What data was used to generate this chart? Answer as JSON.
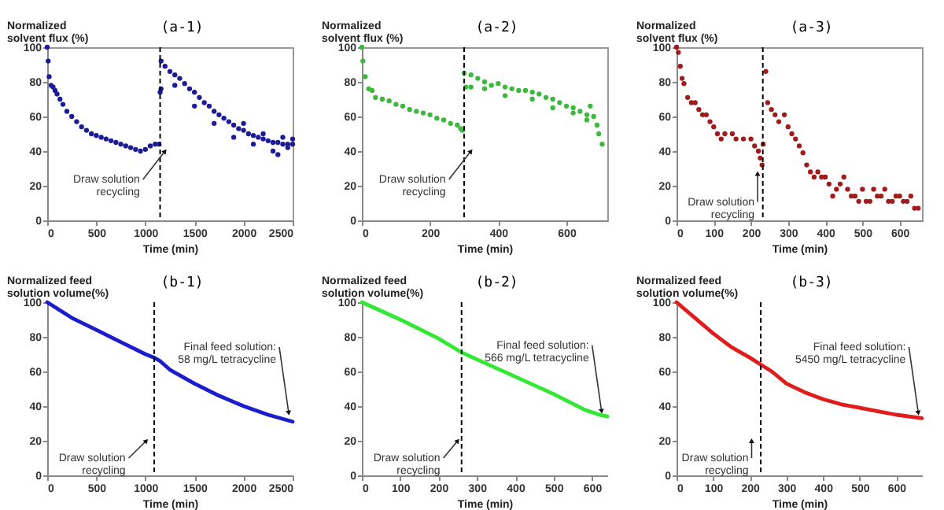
{
  "chart_data": [
    {
      "type": "scatter",
      "title": "(a-1)",
      "ylabel": "Normalized solvent flux (%)",
      "xlabel": "Time (min)",
      "color": "#1c1c96",
      "marker": "circle",
      "xlim": [
        0,
        2500
      ],
      "ylim": [
        0,
        100
      ],
      "xticks": [
        0,
        500,
        1000,
        1500,
        2000,
        2500
      ],
      "yticks": [
        0,
        20,
        40,
        60,
        80,
        100
      ],
      "x": [
        0,
        10,
        20,
        40,
        60,
        80,
        100,
        130,
        160,
        200,
        250,
        300,
        350,
        400,
        450,
        500,
        550,
        600,
        650,
        700,
        750,
        800,
        850,
        900,
        950,
        1000,
        1050,
        1100,
        1140,
        1150,
        1160,
        1160,
        1200,
        1250,
        1300,
        1300,
        1350,
        1400,
        1450,
        1500,
        1500,
        1550,
        1600,
        1650,
        1700,
        1700,
        1750,
        1800,
        1850,
        1900,
        1900,
        1950,
        2000,
        2000,
        2050,
        2100,
        2100,
        2150,
        2200,
        2200,
        2250,
        2300,
        2300,
        2350,
        2350,
        2400,
        2400,
        2450,
        2450,
        2500,
        2500
      ],
      "values": [
        100,
        92,
        83,
        78,
        77,
        75,
        73,
        70,
        67,
        63,
        60,
        57,
        54,
        52,
        50,
        49,
        48,
        47,
        46,
        45,
        44,
        43,
        42,
        41,
        40,
        41,
        43,
        44,
        44,
        74,
        76,
        92,
        89,
        86,
        84,
        78,
        82,
        79,
        76,
        74,
        66,
        71,
        68,
        66,
        63,
        56,
        61,
        59,
        57,
        55,
        48,
        53,
        52,
        56,
        50,
        49,
        44,
        48,
        47,
        50,
        46,
        45,
        40,
        45,
        38,
        44,
        48,
        44,
        42,
        44,
        47
      ],
      "ref_lines": [
        {
          "axis": "x",
          "value": 1150,
          "color": "#000000",
          "line_style": "dashed"
        }
      ],
      "annotations": [
        {
          "text": "Draw solution recycling",
          "x": 1200,
          "y": 40
        }
      ]
    },
    {
      "type": "scatter",
      "title": "(a-2)",
      "ylabel": "Normalized solvent flux (%)",
      "xlabel": "Time (min)",
      "color": "#3cb83c",
      "marker": "circle",
      "xlim": [
        0,
        720
      ],
      "ylim": [
        0,
        100
      ],
      "xticks": [
        0,
        200,
        400,
        600
      ],
      "yticks": [
        0,
        20,
        40,
        60,
        80,
        100
      ],
      "x": [
        0,
        3,
        10,
        20,
        30,
        40,
        60,
        80,
        100,
        120,
        140,
        160,
        180,
        200,
        220,
        240,
        260,
        280,
        290,
        295,
        300,
        305,
        320,
        320,
        340,
        360,
        360,
        380,
        400,
        420,
        420,
        440,
        460,
        480,
        500,
        500,
        520,
        540,
        560,
        560,
        580,
        600,
        620,
        620,
        640,
        660,
        660,
        670,
        680,
        690,
        695,
        705
      ],
      "values": [
        100,
        92,
        83,
        76,
        75,
        71,
        70,
        69,
        67,
        66,
        64,
        63,
        62,
        61,
        59,
        58,
        56,
        55,
        53,
        52,
        85,
        77,
        84,
        77,
        82,
        80,
        76,
        78,
        79,
        77,
        72,
        76,
        75,
        75,
        74,
        70,
        73,
        71,
        70,
        65,
        68,
        66,
        65,
        62,
        63,
        61,
        58,
        66,
        60,
        55,
        50,
        44
      ],
      "ref_lines": [
        {
          "axis": "x",
          "value": 300,
          "color": "#000000",
          "line_style": "dashed"
        }
      ],
      "annotations": [
        {
          "text": "Draw solution recycling",
          "x": 320,
          "y": 40
        }
      ]
    },
    {
      "type": "scatter",
      "title": "(a-3)",
      "ylabel": "Normalized solvent flux (%)",
      "xlabel": "Time (min)",
      "color": "#a01c1c",
      "marker": "circle",
      "xlim": [
        0,
        660
      ],
      "ylim": [
        0,
        100
      ],
      "xticks": [
        0,
        100,
        200,
        300,
        400,
        500,
        600
      ],
      "yticks": [
        0,
        20,
        40,
        60,
        80,
        100
      ],
      "x": [
        0,
        5,
        10,
        15,
        20,
        30,
        40,
        50,
        60,
        70,
        80,
        90,
        100,
        110,
        120,
        130,
        150,
        160,
        180,
        200,
        210,
        220,
        225,
        230,
        233,
        240,
        245,
        255,
        265,
        275,
        290,
        300,
        310,
        320,
        330,
        340,
        350,
        360,
        370,
        380,
        390,
        400,
        410,
        420,
        430,
        440,
        450,
        460,
        470,
        480,
        490,
        500,
        510,
        520,
        530,
        540,
        550,
        560,
        570,
        580,
        590,
        600,
        610,
        620,
        630,
        640,
        650
      ],
      "values": [
        100,
        97,
        89,
        82,
        79,
        71,
        68,
        68,
        64,
        61,
        61,
        57,
        54,
        50,
        47,
        50,
        50,
        47,
        47,
        47,
        43,
        40,
        36,
        32,
        44,
        86,
        68,
        64,
        61,
        57,
        61,
        54,
        50,
        47,
        43,
        39,
        32,
        28,
        25,
        28,
        25,
        25,
        21,
        14,
        18,
        21,
        25,
        18,
        14,
        14,
        11,
        18,
        11,
        11,
        18,
        14,
        14,
        18,
        11,
        11,
        14,
        14,
        11,
        11,
        14,
        7,
        7
      ],
      "ref_lines": [
        {
          "axis": "x",
          "value": 232,
          "color": "#000000",
          "line_style": "dashed"
        }
      ],
      "annotations": [
        {
          "text": "Draw solution recycling",
          "x": 218,
          "y": 27
        }
      ]
    },
    {
      "type": "line",
      "title": "(b-1)",
      "ylabel": "Normalized feed solution volume(%)",
      "xlabel": "Time (min)",
      "color": "#1c1ccf",
      "xlim": [
        0,
        2500
      ],
      "ylim": [
        0,
        100
      ],
      "xticks": [
        0,
        500,
        1000,
        1500,
        2000,
        2500
      ],
      "yticks": [
        0,
        20,
        40,
        60,
        80,
        100
      ],
      "x": [
        0,
        250,
        500,
        750,
        1000,
        1090,
        1150,
        1250,
        1500,
        1750,
        2000,
        2250,
        2500
      ],
      "values": [
        100,
        91,
        84,
        77,
        70,
        68,
        66,
        61,
        53,
        46,
        40,
        35,
        31
      ],
      "ref_lines": [
        {
          "axis": "x",
          "value": 1090,
          "color": "#000000",
          "line_style": "dashed"
        }
      ],
      "annotations": [
        {
          "text": "Draw solution recycling",
          "x": 1010,
          "y": 20
        },
        {
          "text": "Final feed solution: 58 mg/L tetracycline",
          "x": 2460,
          "y": 36
        }
      ]
    },
    {
      "type": "line",
      "title": "(b-2)",
      "ylabel": "Normalized feed solution volume(%)",
      "xlabel": "Time (min)",
      "color": "#33e833",
      "xlim": [
        0,
        640
      ],
      "ylim": [
        0,
        100
      ],
      "xticks": [
        0,
        100,
        200,
        300,
        400,
        500,
        600
      ],
      "yticks": [
        0,
        20,
        40,
        60,
        80,
        100
      ],
      "x": [
        0,
        100,
        200,
        260,
        300,
        400,
        500,
        580,
        620,
        640
      ],
      "values": [
        100,
        90,
        79,
        71,
        67,
        57,
        47,
        38,
        35,
        34
      ],
      "ref_lines": [
        {
          "axis": "x",
          "value": 260,
          "color": "#000000",
          "line_style": "dashed"
        }
      ],
      "annotations": [
        {
          "text": "Draw solution recycling",
          "x": 250,
          "y": 20
        },
        {
          "text": "Final feed solution: 566 mg/L tetracycline",
          "x": 625,
          "y": 37
        }
      ]
    },
    {
      "type": "line",
      "title": "(b-3)",
      "ylabel": "Normalized feed solution volume(%)",
      "xlabel": "Time (min)",
      "color": "#e01c1c",
      "xlim": [
        0,
        670
      ],
      "ylim": [
        0,
        100
      ],
      "xticks": [
        0,
        100,
        200,
        300,
        400,
        500,
        600
      ],
      "yticks": [
        0,
        20,
        40,
        60,
        80,
        100
      ],
      "x": [
        0,
        50,
        100,
        150,
        200,
        230,
        260,
        300,
        350,
        400,
        450,
        500,
        550,
        600,
        670
      ],
      "values": [
        100,
        91,
        82,
        74,
        68,
        64,
        60,
        53,
        48,
        44,
        41,
        39,
        37,
        35,
        33
      ],
      "ref_lines": [
        {
          "axis": "x",
          "value": 230,
          "color": "#000000",
          "line_style": "dashed"
        }
      ],
      "annotations": [
        {
          "text": "Draw solution recycling",
          "x": 205,
          "y": 20
        },
        {
          "text": "Final feed solution: 5450 mg/L tetracycline",
          "x": 660,
          "y": 36
        }
      ]
    }
  ]
}
